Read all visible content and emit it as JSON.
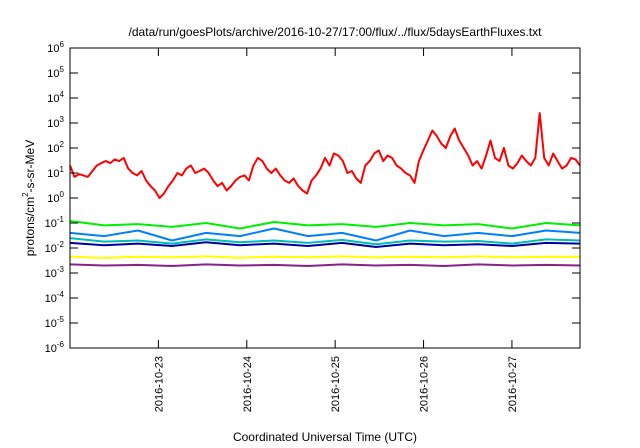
{
  "chart_data": {
    "type": "line",
    "title": "/data/run/goesPlots/archive/2016-10-27/17:00/flux/../flux/5daysEarthFluxes.txt",
    "xlabel": "Coordinated Universal Time (UTC)",
    "ylabel": {
      "base": "protons/cm",
      "sup": "2",
      "rest": "-s-sr-MeV"
    },
    "x_ticks": [
      "2016-10-23",
      "2016-10-24",
      "2016-10-25",
      "2016-10-26",
      "2016-10-27"
    ],
    "x_range_days": [
      0,
      5.77
    ],
    "x_tick_days": [
      1.0,
      2.0,
      3.0,
      4.0,
      5.0
    ],
    "y_scale": "log",
    "ylim": [
      1e-06,
      1000000.0
    ],
    "y_ticks": [
      {
        "base": "10",
        "exp": "-6"
      },
      {
        "base": "10",
        "exp": "-5"
      },
      {
        "base": "10",
        "exp": "-4"
      },
      {
        "base": "10",
        "exp": "-3"
      },
      {
        "base": "10",
        "exp": "-2"
      },
      {
        "base": "10",
        "exp": "-1"
      },
      {
        "base": "10",
        "exp": "0"
      },
      {
        "base": "10",
        "exp": "1"
      },
      {
        "base": "10",
        "exp": "2"
      },
      {
        "base": "10",
        "exp": "3"
      },
      {
        "base": "10",
        "exp": "4"
      },
      {
        "base": "10",
        "exp": "5"
      },
      {
        "base": "10",
        "exp": "6"
      }
    ],
    "grid": false,
    "legend": "none",
    "series": [
      {
        "color": "#ff0000",
        "values": [
          20,
          7,
          9,
          8,
          7,
          12,
          20,
          25,
          30,
          25,
          35,
          30,
          40,
          15,
          10,
          8,
          12,
          5,
          3,
          2,
          1,
          1.5,
          3,
          5,
          10,
          8,
          15,
          20,
          10,
          12,
          15,
          10,
          5,
          3,
          4,
          2,
          3,
          5,
          7,
          8,
          5,
          20,
          40,
          30,
          15,
          10,
          15,
          8,
          5,
          4,
          6,
          3,
          2,
          1.5,
          5,
          8,
          15,
          40,
          20,
          60,
          50,
          30,
          10,
          12,
          6,
          4,
          20,
          30,
          60,
          80,
          30,
          50,
          40,
          20,
          15,
          10,
          8,
          4,
          30,
          80,
          200,
          500,
          300,
          150,
          100,
          300,
          600,
          200,
          100,
          50,
          20,
          30,
          15,
          50,
          200,
          40,
          30,
          100,
          20,
          15,
          25,
          50,
          30,
          20,
          40,
          2500,
          40,
          20,
          60,
          30,
          15,
          20,
          40,
          35,
          20
        ]
      },
      {
        "color": "#00ee00",
        "values": [
          0.12,
          0.08,
          0.09,
          0.07,
          0.1,
          0.06,
          0.11,
          0.08,
          0.09,
          0.07,
          0.1,
          0.08,
          0.09,
          0.06,
          0.1,
          0.08
        ]
      },
      {
        "color": "#0080ff",
        "values": [
          0.04,
          0.03,
          0.05,
          0.02,
          0.04,
          0.03,
          0.06,
          0.03,
          0.04,
          0.02,
          0.05,
          0.03,
          0.04,
          0.03,
          0.05,
          0.04
        ]
      },
      {
        "color": "#00bbbb",
        "values": [
          0.025,
          0.018,
          0.02,
          0.015,
          0.022,
          0.017,
          0.02,
          0.016,
          0.021,
          0.014,
          0.02,
          0.018,
          0.019,
          0.015,
          0.022,
          0.02
        ]
      },
      {
        "color": "#0000a0",
        "values": [
          0.016,
          0.013,
          0.015,
          0.012,
          0.017,
          0.013,
          0.015,
          0.012,
          0.016,
          0.011,
          0.015,
          0.013,
          0.014,
          0.012,
          0.016,
          0.015
        ]
      },
      {
        "color": "#ffff00",
        "values": [
          0.0045,
          0.004,
          0.0045,
          0.0042,
          0.0046,
          0.0041,
          0.0045,
          0.0043,
          0.0046,
          0.0042,
          0.0045,
          0.0043,
          0.0046,
          0.0042,
          0.0045,
          0.0044
        ]
      },
      {
        "color": "#882288",
        "values": [
          0.0022,
          0.002,
          0.0021,
          0.0019,
          0.0022,
          0.002,
          0.0021,
          0.0019,
          0.0022,
          0.002,
          0.0021,
          0.0019,
          0.0022,
          0.002,
          0.0021,
          0.002
        ]
      }
    ]
  }
}
